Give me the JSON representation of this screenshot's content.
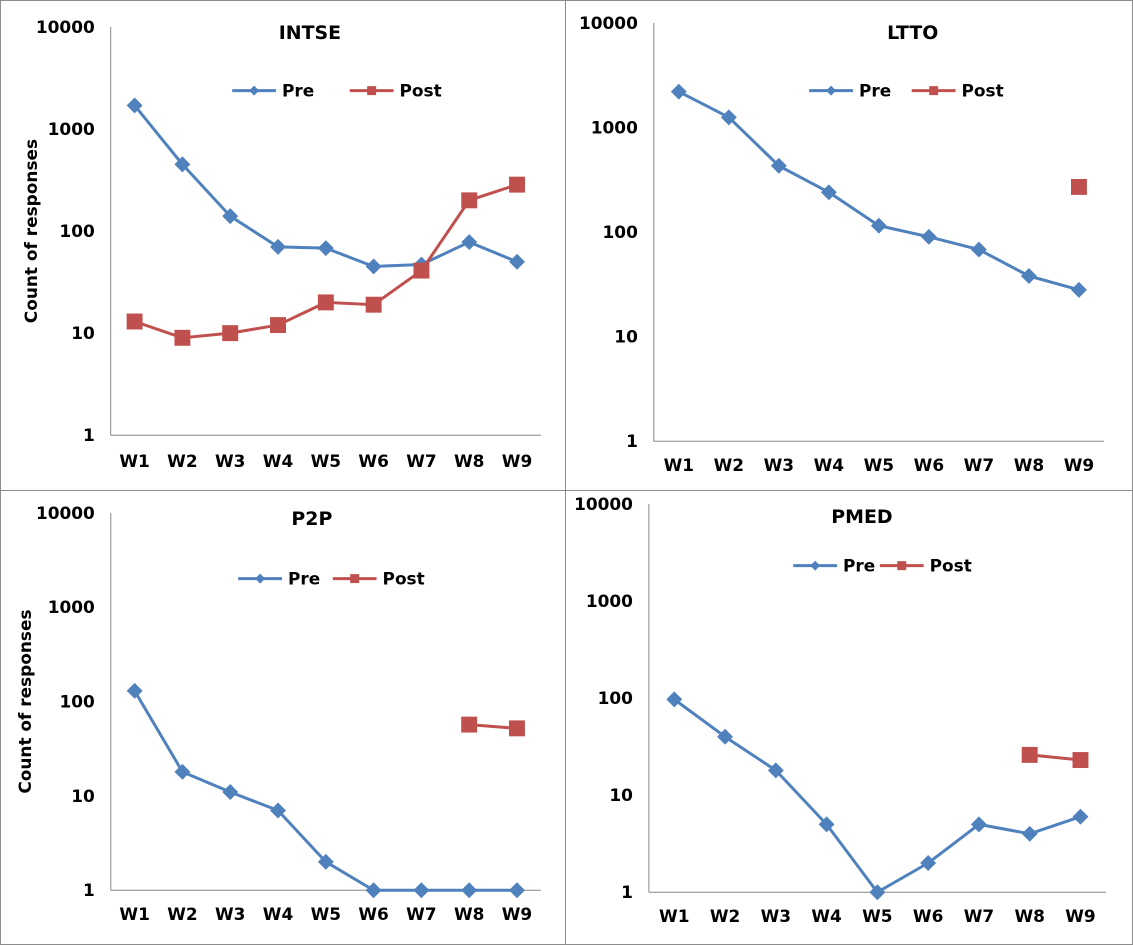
{
  "chart_data": [
    {
      "type": "line",
      "title": "INTSE",
      "ylabel": "Count of responses",
      "yscale": "log",
      "ylim": [
        1,
        10000
      ],
      "ytick_labels": [
        "1",
        "10",
        "100",
        "1000",
        "10000"
      ],
      "categories": [
        "W1",
        "W2",
        "W3",
        "W4",
        "W5",
        "W6",
        "W7",
        "W8",
        "W9"
      ],
      "legend": "top-center",
      "series": [
        {
          "name": "Pre",
          "color": "#4f81bd",
          "marker": "diamond",
          "values": [
            1700,
            450,
            140,
            70,
            68,
            45,
            47,
            78,
            50
          ]
        },
        {
          "name": "Post",
          "color": "#c0504d",
          "marker": "square",
          "values": [
            13,
            9,
            10,
            12,
            20,
            19,
            41,
            200,
            285
          ]
        }
      ]
    },
    {
      "type": "line",
      "title": "LTTO",
      "ylabel": "",
      "yscale": "log",
      "ylim": [
        1,
        10000
      ],
      "ytick_labels": [
        "1",
        "10",
        "100",
        "1000",
        "10000"
      ],
      "categories": [
        "W1",
        "W2",
        "W3",
        "W4",
        "W5",
        "W6",
        "W7",
        "W8",
        "W9"
      ],
      "legend": "top-center",
      "series": [
        {
          "name": "Pre",
          "color": "#4f81bd",
          "marker": "diamond",
          "values": [
            2200,
            1250,
            430,
            240,
            115,
            90,
            68,
            38,
            28
          ]
        },
        {
          "name": "Post",
          "color": "#c0504d",
          "marker": "square",
          "values": [
            null,
            null,
            null,
            null,
            null,
            null,
            null,
            null,
            270
          ]
        }
      ]
    },
    {
      "type": "line",
      "title": "P2P",
      "ylabel": "Count of responses",
      "yscale": "log",
      "ylim": [
        1,
        10000
      ],
      "ytick_labels": [
        "1",
        "10",
        "100",
        "1000",
        "10000"
      ],
      "categories": [
        "W1",
        "W2",
        "W3",
        "W4",
        "W5",
        "W6",
        "W7",
        "W8",
        "W9"
      ],
      "legend": "top-center",
      "series": [
        {
          "name": "Pre",
          "color": "#4f81bd",
          "marker": "diamond",
          "values": [
            130,
            18,
            11,
            7,
            2,
            1,
            1,
            1,
            1
          ]
        },
        {
          "name": "Post",
          "color": "#c0504d",
          "marker": "square",
          "values": [
            null,
            null,
            null,
            null,
            null,
            null,
            null,
            57,
            52
          ]
        }
      ]
    },
    {
      "type": "line",
      "title": "PMED",
      "ylabel": "",
      "yscale": "log",
      "ylim": [
        1,
        10000
      ],
      "ytick_labels": [
        "1",
        "10",
        "100",
        "1000",
        "10000"
      ],
      "categories": [
        "W1",
        "W2",
        "W3",
        "W4",
        "W5",
        "W6",
        "W7",
        "W8",
        "W9"
      ],
      "legend": "top-center",
      "series": [
        {
          "name": "Pre",
          "color": "#4f81bd",
          "marker": "diamond",
          "values": [
            97,
            40,
            18,
            5,
            1,
            2,
            5,
            4,
            6
          ]
        },
        {
          "name": "Post",
          "color": "#c0504d",
          "marker": "square",
          "values": [
            null,
            null,
            null,
            null,
            null,
            null,
            null,
            26,
            23
          ]
        }
      ]
    }
  ]
}
